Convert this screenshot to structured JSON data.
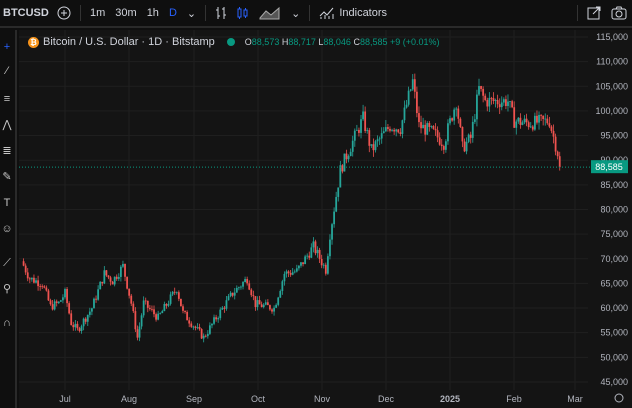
{
  "toolbar": {
    "symbol": "BTCUSD",
    "intervals": [
      "1m",
      "30m",
      "1h",
      "D"
    ],
    "active_interval": "D",
    "indicators_label": "Indicators"
  },
  "legend": {
    "title": "Bitcoin / U.S. Dollar · 1D · Bitstamp",
    "o_label": "O",
    "o": "88,573",
    "h_label": "H",
    "h": "88,717",
    "l_label": "L",
    "l": "88,046",
    "c_label": "C",
    "c": "88,585",
    "change": "+9 (+0.01%)"
  },
  "colors": {
    "up": "#26a69a",
    "down": "#ef5350",
    "last_price_bg": "#089981",
    "background": "#141414"
  },
  "chart_data": {
    "type": "candlestick",
    "title": "Bitcoin / U.S. Dollar · 1D · Bitstamp",
    "ylim": [
      45000,
      115000
    ],
    "y_ticks": [
      "115,000",
      "110,000",
      "105,000",
      "100,000",
      "95,000",
      "90,000",
      "85,000",
      "80,000",
      "75,000",
      "70,000",
      "65,000",
      "60,000",
      "55,000",
      "50,000",
      "45,000"
    ],
    "x_ticks": [
      "Jul",
      "Aug",
      "Sep",
      "Oct",
      "Nov",
      "Dec",
      "2025",
      "Feb",
      "Mar"
    ],
    "last_price": "88,585",
    "grid": true,
    "close_path": [
      [
        "2024-06-10",
        69500
      ],
      [
        "2024-06-14",
        66000
      ],
      [
        "2024-06-20",
        65000
      ],
      [
        "2024-06-24",
        60300
      ],
      [
        "2024-06-28",
        61000
      ],
      [
        "2024-07-01",
        63000
      ],
      [
        "2024-07-04",
        57000
      ],
      [
        "2024-07-07",
        55500
      ],
      [
        "2024-07-14",
        60000
      ],
      [
        "2024-07-20",
        67000
      ],
      [
        "2024-07-24",
        65500
      ],
      [
        "2024-07-29",
        68500
      ],
      [
        "2024-08-02",
        61000
      ],
      [
        "2024-08-05",
        54000
      ],
      [
        "2024-08-08",
        61000
      ],
      [
        "2024-08-15",
        58000
      ],
      [
        "2024-08-24",
        64000
      ],
      [
        "2024-08-27",
        59000
      ],
      [
        "2024-09-06",
        54000
      ],
      [
        "2024-09-12",
        58000
      ],
      [
        "2024-09-20",
        63000
      ],
      [
        "2024-09-27",
        66000
      ],
      [
        "2024-10-01",
        60800
      ],
      [
        "2024-10-10",
        60000
      ],
      [
        "2024-10-15",
        67000
      ],
      [
        "2024-10-21",
        67500
      ],
      [
        "2024-10-29",
        72500
      ],
      [
        "2024-11-04",
        67800
      ],
      [
        "2024-11-06",
        75000
      ],
      [
        "2024-11-11",
        88000
      ],
      [
        "2024-11-13",
        90000
      ],
      [
        "2024-11-22",
        98500
      ],
      [
        "2024-11-26",
        92000
      ],
      [
        "2024-12-05",
        97000
      ],
      [
        "2024-12-10",
        96500
      ],
      [
        "2024-12-16",
        106000
      ],
      [
        "2024-12-19",
        97000
      ],
      [
        "2024-12-26",
        95500
      ],
      [
        "2024-12-31",
        93500
      ],
      [
        "2025-01-06",
        102000
      ],
      [
        "2025-01-09",
        92500
      ],
      [
        "2025-01-13",
        94500
      ],
      [
        "2025-01-17",
        104500
      ],
      [
        "2025-01-20",
        102000
      ],
      [
        "2025-01-27",
        102000
      ],
      [
        "2025-01-31",
        102000
      ],
      [
        "2025-02-03",
        98000
      ],
      [
        "2025-02-10",
        97500
      ],
      [
        "2025-02-20",
        98000
      ],
      [
        "2025-02-24",
        91500
      ],
      [
        "2025-02-25",
        88585
      ]
    ]
  }
}
